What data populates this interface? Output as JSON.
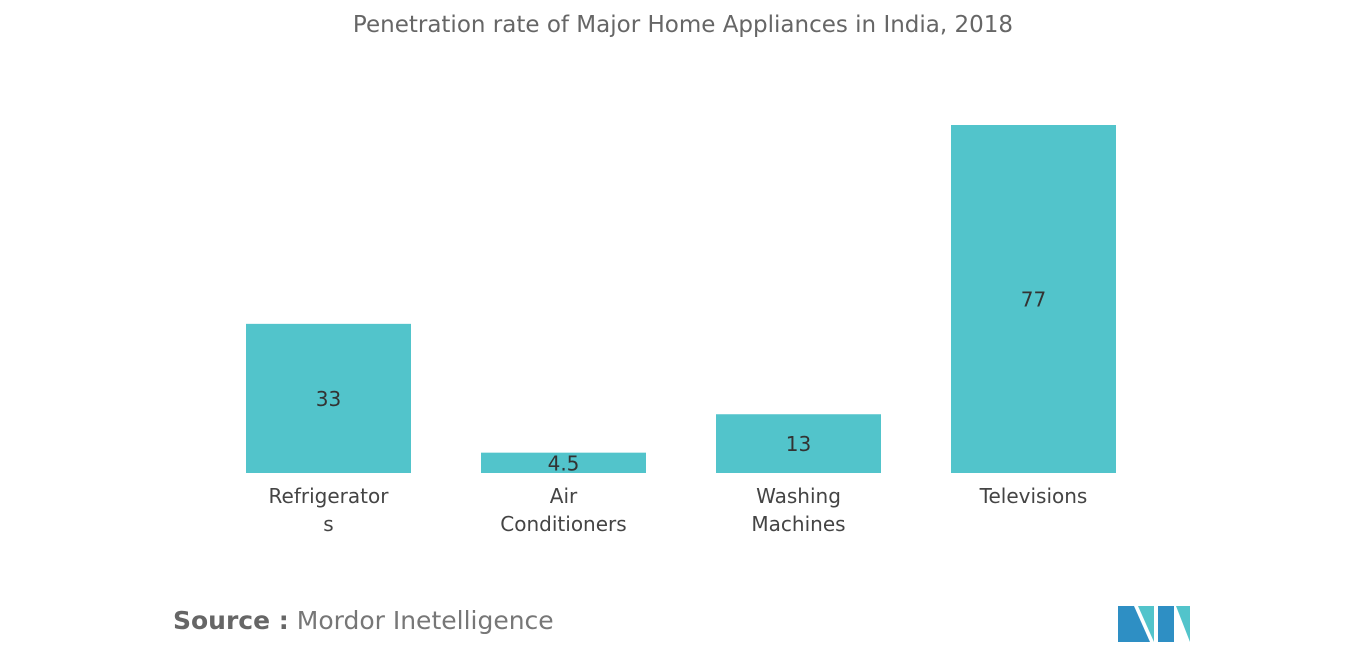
{
  "chart_data": {
    "type": "bar",
    "title": "Penetration rate of Major Home Appliances in India, 2018",
    "categories": [
      "Refrigerators",
      "Air Conditioners",
      "Washing Machines",
      "Televisions"
    ],
    "values": [
      33,
      4.5,
      13,
      77
    ],
    "color": "#52c4cb",
    "source_label": "Source :",
    "source": "Mordor Inetelligence"
  }
}
